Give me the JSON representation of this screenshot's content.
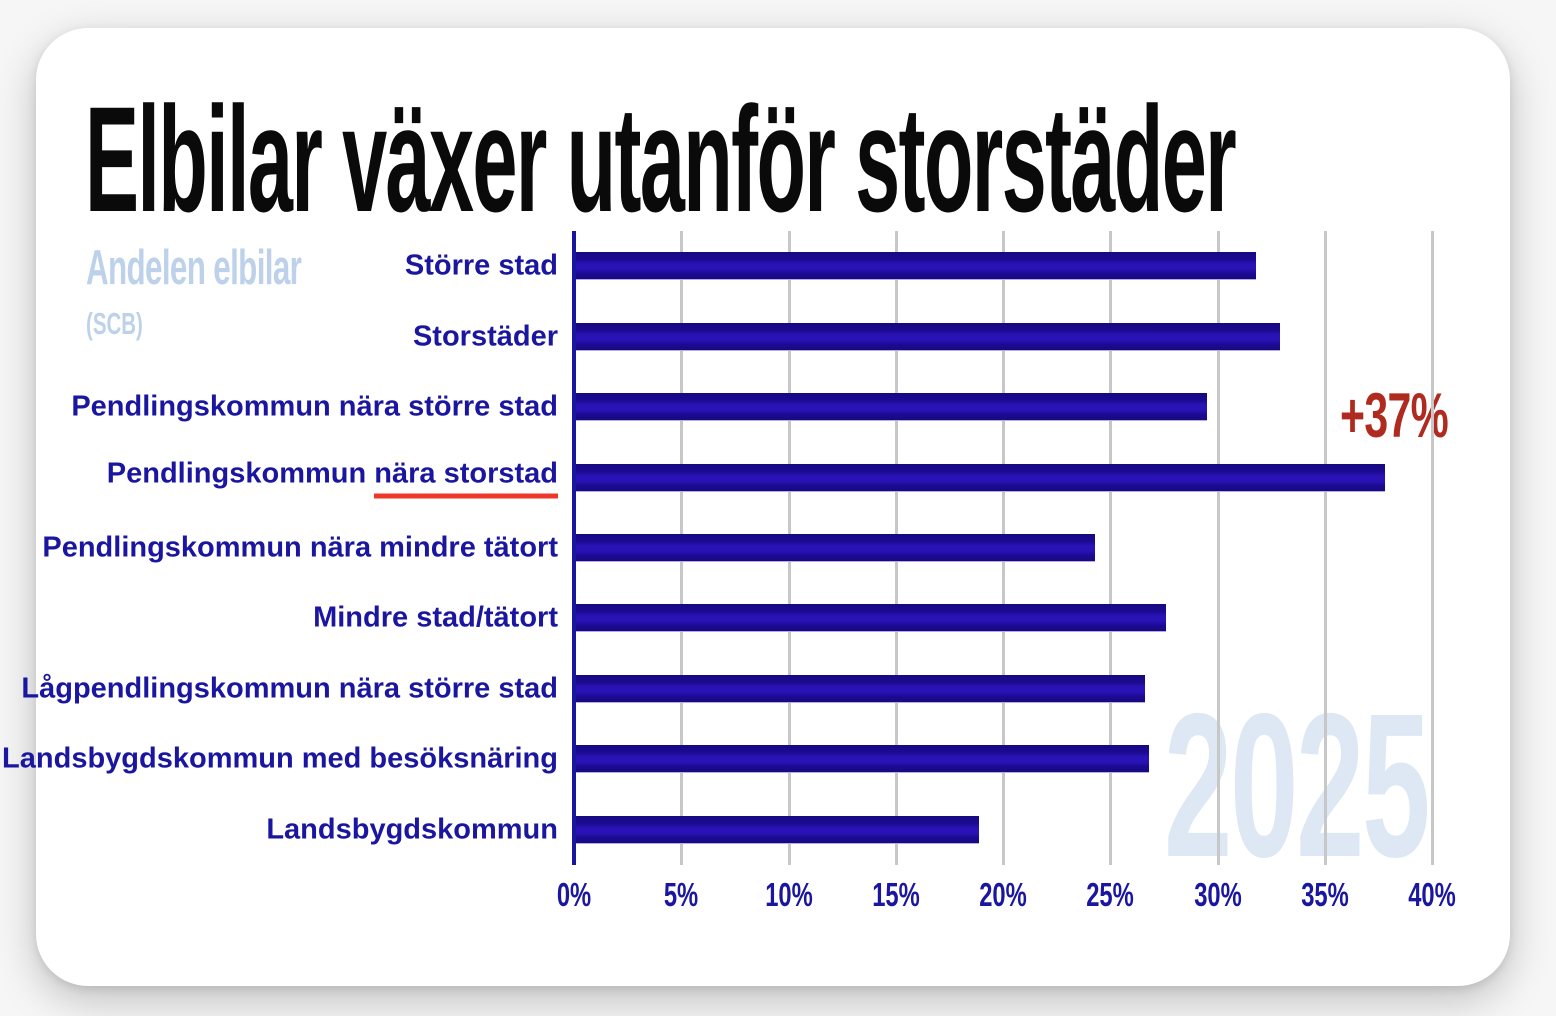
{
  "page": {
    "title": "Elbilar växer utanför storstäder"
  },
  "subtitle": {
    "line1": "Andelen elbilar",
    "line2": "(SCB)"
  },
  "annotation": {
    "delta_label": "+37%"
  },
  "watermark": {
    "year": "2025"
  },
  "chart_data": {
    "type": "bar",
    "orientation": "horizontal",
    "title": "Andelen elbilar (SCB)",
    "categories": [
      "Större stad",
      "Storstäder",
      "Pendlingskommun nära större stad",
      "Pendlingskommun nära storstad",
      "Pendlingskommun nära mindre tätort",
      "Mindre stad/tätort",
      "Lågpendlingskommun nära större stad",
      "Landsbygdskommun med besöksnäring",
      "Landsbygdskommun"
    ],
    "values": [
      31.8,
      32.9,
      29.5,
      37.8,
      24.3,
      27.6,
      26.6,
      26.8,
      18.9
    ],
    "unit": "%",
    "xlim": [
      0,
      40
    ],
    "x_ticks": [
      "0%",
      "5%",
      "10%",
      "15%",
      "20%",
      "25%",
      "30%",
      "35%",
      "40%"
    ],
    "grid": true,
    "legend": "none",
    "highlight": {
      "category_index": 3,
      "underlined_text": "nära storstad",
      "annotation": "+37%"
    },
    "colors": {
      "bar_dark": "#160a80",
      "bar_mid": "#1c0a92",
      "bar_stripe": "#2a13b6",
      "category_label": "#1b16a0",
      "axis_line": "#1b16a0",
      "tick_label": "#1b16a0",
      "gridline": "#c7c7c7",
      "annotation_red": "#b02b1f",
      "underline_red": "#ee372a",
      "subtitle_blue": "#bdd2ea",
      "watermark_blue": "#dde8f4",
      "title_black": "#0a0a0a"
    }
  }
}
